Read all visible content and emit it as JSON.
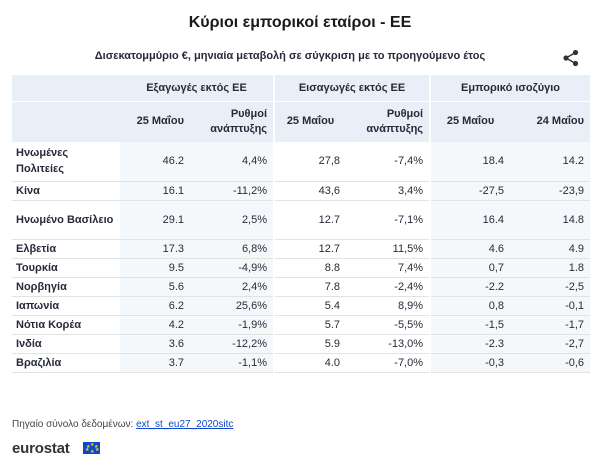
{
  "title": "Κύριοι εμπορικοί εταίροι - ΕΕ",
  "subtitle": "Δισεκατομμύριο €, μηνιαία μεταβολή σε σύγκριση με το προηγούμενο έτος",
  "share_icon": "share-icon",
  "columns": {
    "group1": "Εξαγωγές εκτός ΕΕ",
    "group2": "Εισαγωγές εκτός ΕΕ",
    "group3": "Εμπορικό ισοζύγιο",
    "sub": [
      "25 Μαΐου",
      "Ρυθμοί ανάπτυξης",
      "25 Μαΐου",
      "Ρυθμοί ανάπτυξης",
      "25 Μαΐου",
      "24 Μαΐου"
    ]
  },
  "rows": [
    {
      "country": "Ηνωμένες Πολιτείες",
      "v": [
        "46.2",
        "4,4%",
        "27,8",
        "-7,4%",
        "18.4",
        "14.2"
      ]
    },
    {
      "country": "Κίνα",
      "v": [
        "16.1",
        "-11,2%",
        "43,6",
        "3,4%",
        "-27,5",
        "-23,9"
      ]
    },
    {
      "country": "Ηνωμένο Βασίλειο",
      "v": [
        "29.1",
        "2,5%",
        "12.7",
        "-7,1%",
        "16.4",
        "14.8"
      ]
    },
    {
      "country": "Ελβετία",
      "v": [
        "17.3",
        "6,8%",
        "12.7",
        "11,5%",
        "4.6",
        "4.9"
      ]
    },
    {
      "country": "Τουρκία",
      "v": [
        "9.5",
        "-4,9%",
        "8.8",
        "7,4%",
        "0,7",
        "1.8"
      ]
    },
    {
      "country": "Νορβηγία",
      "v": [
        "5.6",
        "2,4%",
        "7.8",
        "-2,4%",
        "-2.2",
        "-2,5"
      ]
    },
    {
      "country": "Ιαπωνία",
      "v": [
        "6.2",
        "25,6%",
        "5.4",
        "8,9%",
        "0,8",
        "-0,1"
      ]
    },
    {
      "country": "Νότια Κορέα",
      "v": [
        "4.2",
        "-1,9%",
        "5.7",
        "-5,5%",
        "-1,5",
        "-1,7"
      ]
    },
    {
      "country": "Ινδία",
      "v": [
        "3.6",
        "-12,2%",
        "5.9",
        "-13,0%",
        "-2.3",
        "-2,7"
      ]
    },
    {
      "country": "Βραζιλία",
      "v": [
        "3.7",
        "-1,1%",
        "4.0",
        "-7,0%",
        "-0,3",
        "-0,6"
      ]
    }
  ],
  "source": {
    "label": "Πηγαίο σύνολο δεδομένων:",
    "link": "ext_st_eu27_2020sitc"
  },
  "logo": "eurostat",
  "colors": {
    "header_bg": "#e9eff7",
    "link": "#0e47cb",
    "flag": "#0e47cb"
  }
}
